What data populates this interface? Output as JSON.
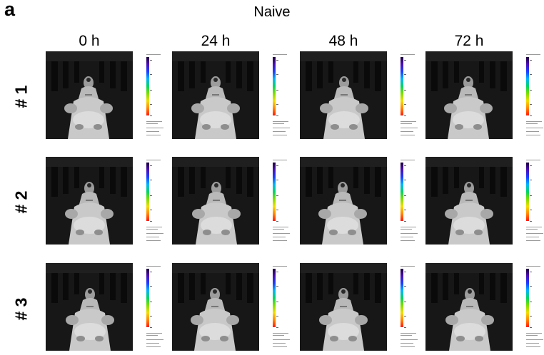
{
  "panel_letter": "a",
  "group_title": "Naive",
  "columns": [
    "0 h",
    "24 h",
    "48 h",
    "72 h"
  ],
  "rows": [
    "# 1",
    "# 2",
    "# 3"
  ],
  "image_content": "grayscale-mouse-photograph",
  "colorbar_gradient": [
    "#1b0033",
    "#4b0fb4",
    "#1f3cff",
    "#00b4ff",
    "#00d46a",
    "#7ce000",
    "#f0e000",
    "#ff8a00",
    "#ff1a00"
  ]
}
